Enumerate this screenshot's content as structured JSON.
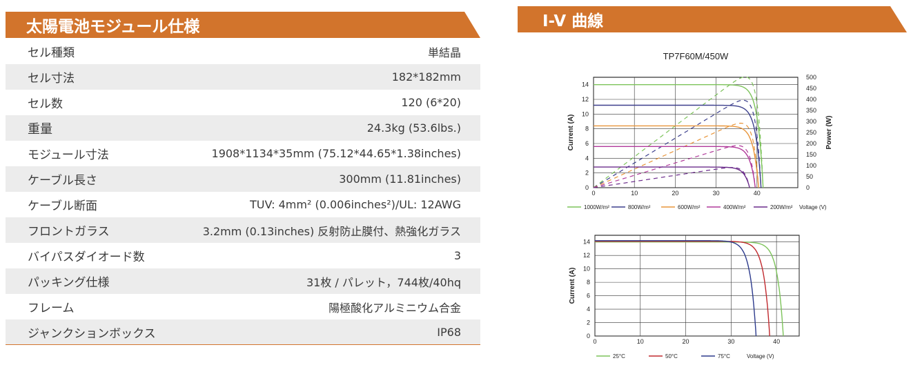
{
  "spec_section": {
    "title": "太陽電池モジュール仕様",
    "rows": [
      {
        "label": "セル種類",
        "value": "単結晶"
      },
      {
        "label": "セル寸法",
        "value": "182*182mm"
      },
      {
        "label": "セル数",
        "value": "120 (6*20)"
      },
      {
        "label": "重量",
        "value": "24.3kg (53.6lbs.)"
      },
      {
        "label": "モジュール寸法",
        "value": "1908*1134*35mm (75.12*44.65*1.38inches)"
      },
      {
        "label": "ケーブル長さ",
        "value": "300mm (11.81inches)"
      },
      {
        "label": "ケーブル断面",
        "value": "TUV: 4mm² (0.006inches²)/UL: 12AWG"
      },
      {
        "label": "フロントガラス",
        "value": "3.2mm (0.13inches) 反射防止膜付、熱強化ガラス"
      },
      {
        "label": "バイパスダイオード数",
        "value": "3"
      },
      {
        "label": "パッキング仕様",
        "value": "31枚 / パレット，744枚/40hq"
      },
      {
        "label": "フレーム",
        "value": "陽極酸化アルミニウム合金"
      },
      {
        "label": "ジャンクションボックス",
        "value": "IP68"
      }
    ]
  },
  "iv_section": {
    "title": "I-V 曲線"
  },
  "chart_data": [
    {
      "type": "line",
      "title": "TP7F60M/450W",
      "xlabel": "Voltage (V)",
      "ylabel": "Current (A)",
      "y2label": "Power (W)",
      "xlim": [
        0,
        50
      ],
      "ylim": [
        0,
        15
      ],
      "y2lim": [
        0,
        500
      ],
      "x_ticks": [
        0,
        10,
        20,
        30,
        40
      ],
      "y_ticks": [
        0,
        2,
        4,
        6,
        8,
        10,
        12,
        14
      ],
      "y2_ticks": [
        0,
        50,
        100,
        150,
        200,
        250,
        300,
        350,
        400,
        450,
        500
      ],
      "grid": true,
      "legend_position": "bottom",
      "series": [
        {
          "name": "1000W/m²",
          "color": "#7cc35a",
          "isc": 14.0,
          "voc": 41.5,
          "vmp": 34.5,
          "imp": 13.05
        },
        {
          "name": "800W/m²",
          "color": "#3c3f8c",
          "isc": 11.2,
          "voc": 41.0,
          "vmp": 34.2,
          "imp": 10.45
        },
        {
          "name": "600W/m²",
          "color": "#e8953a",
          "isc": 8.4,
          "voc": 40.4,
          "vmp": 33.8,
          "imp": 7.84
        },
        {
          "name": "400W/m²",
          "color": "#b0399a",
          "isc": 5.6,
          "voc": 39.6,
          "vmp": 33.2,
          "imp": 5.2
        },
        {
          "name": "200W/m²",
          "color": "#6a2a8a",
          "isc": 2.8,
          "voc": 38.2,
          "vmp": 32.0,
          "imp": 2.6
        }
      ]
    },
    {
      "type": "line",
      "xlabel": "Voltage (V)",
      "ylabel": "Current (A)",
      "xlim": [
        0,
        45
      ],
      "ylim": [
        0,
        15
      ],
      "x_ticks": [
        0,
        10,
        20,
        30,
        40
      ],
      "y_ticks": [
        0,
        2,
        4,
        6,
        8,
        10,
        12,
        14
      ],
      "grid": true,
      "legend_position": "bottom",
      "series": [
        {
          "name": "25°C",
          "color": "#7cc35a",
          "isc": 14.0,
          "voc": 41.5
        },
        {
          "name": "50°C",
          "color": "#c0282d",
          "isc": 14.1,
          "voc": 38.5
        },
        {
          "name": "75°C",
          "color": "#2c3a8c",
          "isc": 14.2,
          "voc": 35.5
        }
      ]
    }
  ]
}
